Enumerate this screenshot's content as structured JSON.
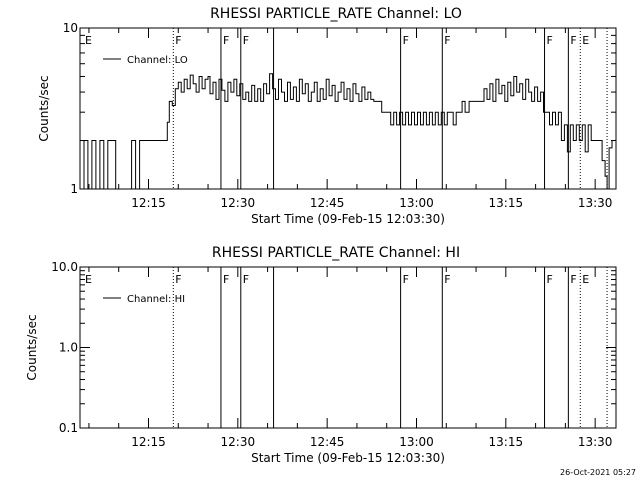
{
  "timestamp": "26-Oct-2021 05:27",
  "chart_data": [
    {
      "type": "line",
      "title": "RHESSI PARTICLE_RATE Channel: LO",
      "xlabel": "Start Time (09-Feb-15 12:03:30)",
      "ylabel": "Counts/sec",
      "yscale": "log",
      "ylim": [
        1,
        10
      ],
      "xlim": [
        0,
        5400
      ],
      "x_unit": "seconds since 12:03:30",
      "xticks": [
        {
          "t": 690,
          "label": "12:15"
        },
        {
          "t": 1590,
          "label": "12:30"
        },
        {
          "t": 2490,
          "label": "12:45"
        },
        {
          "t": 3390,
          "label": "13:00"
        },
        {
          "t": 4290,
          "label": "13:15"
        },
        {
          "t": 5190,
          "label": "13:30"
        }
      ],
      "yticks": [
        {
          "v": 1,
          "label": "1"
        },
        {
          "v": 10,
          "label": "10"
        }
      ],
      "legend": {
        "label": "Channel: LO",
        "position": "top-left"
      },
      "series": [
        {
          "name": "Channel: LO",
          "points": [
            [
              0,
              1
            ],
            [
              40,
              2
            ],
            [
              80,
              1
            ],
            [
              120,
              2
            ],
            [
              160,
              1
            ],
            [
              200,
              2
            ],
            [
              240,
              1
            ],
            [
              280,
              2
            ],
            [
              320,
              2
            ],
            [
              360,
              1
            ],
            [
              400,
              1
            ],
            [
              440,
              1
            ],
            [
              480,
              1
            ],
            [
              520,
              2
            ],
            [
              560,
              1
            ],
            [
              600,
              2
            ],
            [
              700,
              2
            ],
            [
              850,
              2
            ],
            [
              880,
              2.6
            ],
            [
              900,
              3.5
            ],
            [
              930,
              3.3
            ],
            [
              960,
              4.2
            ],
            [
              990,
              4.6
            ],
            [
              1020,
              4.0
            ],
            [
              1050,
              4.8
            ],
            [
              1080,
              4.2
            ],
            [
              1110,
              5.1
            ],
            [
              1140,
              4.5
            ],
            [
              1170,
              4.0
            ],
            [
              1200,
              5.0
            ],
            [
              1230,
              4.2
            ],
            [
              1260,
              4.8
            ],
            [
              1290,
              5.0
            ],
            [
              1310,
              3.9
            ],
            [
              1340,
              4.6
            ],
            [
              1370,
              3.6
            ],
            [
              1400,
              4.8
            ],
            [
              1430,
              4.1
            ],
            [
              1460,
              3.5
            ],
            [
              1490,
              4.6
            ],
            [
              1520,
              4.0
            ],
            [
              1550,
              4.8
            ],
            [
              1580,
              3.8
            ],
            [
              1610,
              4.5
            ],
            [
              1640,
              3.6
            ],
            [
              1670,
              4.0
            ],
            [
              1700,
              3.5
            ],
            [
              1730,
              4.4
            ],
            [
              1760,
              3.5
            ],
            [
              1790,
              4.2
            ],
            [
              1820,
              3.5
            ],
            [
              1850,
              4.5
            ],
            [
              1880,
              3.9
            ],
            [
              1910,
              5.2
            ],
            [
              1940,
              4.2
            ],
            [
              1970,
              3.6
            ],
            [
              2000,
              4.8
            ],
            [
              2030,
              4.0
            ],
            [
              2060,
              3.5
            ],
            [
              2090,
              4.6
            ],
            [
              2120,
              3.6
            ],
            [
              2150,
              4.3
            ],
            [
              2180,
              3.5
            ],
            [
              2210,
              4.8
            ],
            [
              2240,
              3.9
            ],
            [
              2270,
              4.5
            ],
            [
              2300,
              3.5
            ],
            [
              2330,
              4.0
            ],
            [
              2360,
              4.6
            ],
            [
              2390,
              3.5
            ],
            [
              2420,
              4.2
            ],
            [
              2450,
              3.6
            ],
            [
              2480,
              4.8
            ],
            [
              2510,
              3.8
            ],
            [
              2540,
              4.4
            ],
            [
              2570,
              3.5
            ],
            [
              2600,
              4.0
            ],
            [
              2630,
              4.6
            ],
            [
              2660,
              3.6
            ],
            [
              2690,
              4.2
            ],
            [
              2720,
              3.5
            ],
            [
              2750,
              4.5
            ],
            [
              2780,
              3.9
            ],
            [
              2810,
              3.5
            ],
            [
              2840,
              4.3
            ],
            [
              2870,
              3.6
            ],
            [
              2900,
              4.0
            ],
            [
              2930,
              3.6
            ],
            [
              2960,
              3.5
            ],
            [
              3000,
              3.5
            ],
            [
              3040,
              3.0
            ],
            [
              3100,
              3.0
            ],
            [
              3130,
              2.5
            ],
            [
              3160,
              3.0
            ],
            [
              3190,
              2.5
            ],
            [
              3220,
              3.0
            ],
            [
              3250,
              2.5
            ],
            [
              3280,
              3.0
            ],
            [
              3310,
              2.5
            ],
            [
              3340,
              3.0
            ],
            [
              3370,
              2.5
            ],
            [
              3400,
              3.0
            ],
            [
              3430,
              2.5
            ],
            [
              3460,
              3.0
            ],
            [
              3490,
              2.5
            ],
            [
              3520,
              3.0
            ],
            [
              3550,
              2.5
            ],
            [
              3580,
              3.0
            ],
            [
              3610,
              2.5
            ],
            [
              3640,
              3.0
            ],
            [
              3670,
              2.5
            ],
            [
              3700,
              3.0
            ],
            [
              3730,
              3.0
            ],
            [
              3760,
              2.5
            ],
            [
              3790,
              3.0
            ],
            [
              3820,
              3.0
            ],
            [
              3850,
              3.5
            ],
            [
              3880,
              3.0
            ],
            [
              3920,
              3.5
            ],
            [
              3980,
              3.5
            ],
            [
              4040,
              3.5
            ],
            [
              4070,
              4.2
            ],
            [
              4100,
              3.6
            ],
            [
              4130,
              4.5
            ],
            [
              4160,
              3.5
            ],
            [
              4190,
              4.8
            ],
            [
              4220,
              3.9
            ],
            [
              4250,
              4.4
            ],
            [
              4280,
              3.5
            ],
            [
              4310,
              4.6
            ],
            [
              4340,
              3.8
            ],
            [
              4370,
              5.0
            ],
            [
              4400,
              4.0
            ],
            [
              4430,
              4.5
            ],
            [
              4460,
              3.6
            ],
            [
              4490,
              4.8
            ],
            [
              4520,
              4.0
            ],
            [
              4550,
              3.5
            ],
            [
              4580,
              4.3
            ],
            [
              4610,
              3.5
            ],
            [
              4640,
              4.0
            ],
            [
              4670,
              3.0
            ],
            [
              4700,
              3.0
            ],
            [
              4730,
              2.5
            ],
            [
              4760,
              3.0
            ],
            [
              4790,
              2.5
            ],
            [
              4820,
              3.0
            ],
            [
              4850,
              2.0
            ],
            [
              4880,
              2.5
            ],
            [
              4910,
              1.7
            ],
            [
              4940,
              2.5
            ],
            [
              4970,
              2.0
            ],
            [
              5000,
              2.5
            ],
            [
              5030,
              2.0
            ],
            [
              5060,
              2.5
            ],
            [
              5090,
              1.7
            ],
            [
              5120,
              2.5
            ],
            [
              5150,
              2.0
            ],
            [
              5180,
              2.0
            ],
            [
              5220,
              2.0
            ],
            [
              5260,
              1.5
            ],
            [
              5290,
              1.2
            ],
            [
              5310,
              1
            ],
            [
              5330,
              1.8
            ],
            [
              5360,
              2
            ]
          ]
        }
      ],
      "markers": [
        {
          "t": 30,
          "label": "E",
          "style": "none"
        },
        {
          "t": 940,
          "label": "F",
          "style": "dotted"
        },
        {
          "t": 1420,
          "label": "F",
          "style": "solid"
        },
        {
          "t": 1620,
          "label": "F",
          "style": "solid"
        },
        {
          "t": 1950,
          "label": "",
          "style": "solid"
        },
        {
          "t": 3230,
          "label": "F",
          "style": "solid"
        },
        {
          "t": 3650,
          "label": "F",
          "style": "solid"
        },
        {
          "t": 4680,
          "label": "F",
          "style": "solid"
        },
        {
          "t": 4920,
          "label": "F",
          "style": "solid"
        },
        {
          "t": 5040,
          "label": "E",
          "style": "dotted"
        },
        {
          "t": 5310,
          "label": "",
          "style": "dotted"
        }
      ]
    },
    {
      "type": "line",
      "title": "RHESSI PARTICLE_RATE Channel: HI",
      "xlabel": "Start Time (09-Feb-15 12:03:30)",
      "ylabel": "Counts/sec",
      "yscale": "log",
      "ylim": [
        0.1,
        10
      ],
      "xlim": [
        0,
        5400
      ],
      "x_unit": "seconds since 12:03:30",
      "xticks": [
        {
          "t": 690,
          "label": "12:15"
        },
        {
          "t": 1590,
          "label": "12:30"
        },
        {
          "t": 2490,
          "label": "12:45"
        },
        {
          "t": 3390,
          "label": "13:00"
        },
        {
          "t": 4290,
          "label": "13:15"
        },
        {
          "t": 5190,
          "label": "13:30"
        }
      ],
      "yticks": [
        {
          "v": 0.1,
          "label": "0.1"
        },
        {
          "v": 1,
          "label": "1.0"
        },
        {
          "v": 10,
          "label": "10.0"
        }
      ],
      "legend": {
        "label": "Channel: HI",
        "position": "top-left"
      },
      "series": [
        {
          "name": "Channel: HI",
          "points": []
        }
      ],
      "markers": [
        {
          "t": 30,
          "label": "E",
          "style": "none"
        },
        {
          "t": 940,
          "label": "F",
          "style": "dotted"
        },
        {
          "t": 1420,
          "label": "F",
          "style": "solid"
        },
        {
          "t": 1620,
          "label": "F",
          "style": "solid"
        },
        {
          "t": 1950,
          "label": "",
          "style": "solid"
        },
        {
          "t": 3230,
          "label": "F",
          "style": "solid"
        },
        {
          "t": 3650,
          "label": "F",
          "style": "solid"
        },
        {
          "t": 4680,
          "label": "F",
          "style": "solid"
        },
        {
          "t": 4920,
          "label": "F",
          "style": "solid"
        },
        {
          "t": 5040,
          "label": "E",
          "style": "dotted"
        },
        {
          "t": 5310,
          "label": "",
          "style": "dotted"
        }
      ]
    }
  ]
}
